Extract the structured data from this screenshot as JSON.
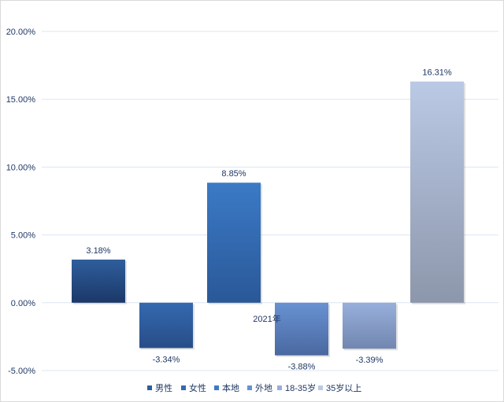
{
  "chart_data": {
    "type": "bar",
    "title": "",
    "xlabel": "",
    "ylabel": "",
    "categories": [
      "2021年"
    ],
    "series": [
      {
        "name": "男性",
        "values": [
          3.18
        ],
        "label": "3.18%",
        "color_top": "#2f5e9c",
        "color_bottom": "#1b3868"
      },
      {
        "name": "女性",
        "values": [
          -3.34
        ],
        "label": "-3.34%",
        "color_top": "#3469b0",
        "color_bottom": "#284d88"
      },
      {
        "name": "本地",
        "values": [
          8.85
        ],
        "label": "8.85%",
        "color_top": "#3b7ac6",
        "color_bottom": "#2a5898"
      },
      {
        "name": "外地",
        "values": [
          -3.88
        ],
        "label": "-3.88%",
        "color_top": "#6892d2",
        "color_bottom": "#4a68a0"
      },
      {
        "name": "18-35岁",
        "values": [
          -3.39
        ],
        "label": "-3.39%",
        "color_top": "#97afdb",
        "color_bottom": "#7187b0"
      },
      {
        "name": "35岁以上",
        "values": [
          16.31
        ],
        "label": "16.31%",
        "color_top": "#bac9e5",
        "color_bottom": "#8d97ab"
      }
    ],
    "ylim": [
      -5,
      20
    ],
    "yticks": [
      -5,
      0,
      5,
      10,
      15,
      20
    ],
    "ytick_labels": [
      "-5.00%",
      "0.00%",
      "5.00%",
      "10.00%",
      "15.00%",
      "20.00%"
    ],
    "grid": true,
    "legend_placement": "bottom"
  }
}
